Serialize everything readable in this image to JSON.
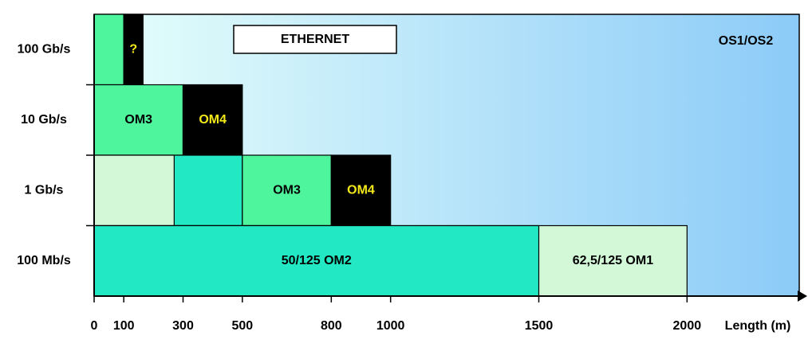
{
  "chart_data": {
    "type": "range",
    "title": "ETHERNET",
    "annotation": "OS1/OS2",
    "x_label": "Length (m)",
    "categories": [
      "100 Gb/s",
      "10 Gb/s",
      "1 Gb/s",
      "100 Mb/s"
    ],
    "xlim": [
      0,
      2400
    ],
    "xticks": [
      0,
      100,
      300,
      500,
      800,
      1000,
      1500,
      2000
    ],
    "ranges": [
      [
        {
          "start": 0,
          "end": 100,
          "color": "#4ff59c"
        },
        {
          "start": 100,
          "end": 165,
          "color": "#000000",
          "label": "?",
          "text_color": "#f3e81a"
        }
      ],
      [
        {
          "start": 0,
          "end": 300,
          "color": "#4ff59c",
          "label": "OM3",
          "text_color": "#000000"
        },
        {
          "start": 300,
          "end": 500,
          "color": "#000000",
          "label": "OM4",
          "text_color": "#f3e81a"
        }
      ],
      [
        {
          "start": 0,
          "end": 500,
          "color": "#22e8c4"
        },
        {
          "start": 0,
          "end": 270,
          "color": "#d2f8d8"
        },
        {
          "start": 500,
          "end": 800,
          "color": "#4ff59c",
          "label": "OM3",
          "text_color": "#000000"
        },
        {
          "start": 800,
          "end": 1000,
          "color": "#000000",
          "label": "OM4",
          "text_color": "#f3e81a"
        }
      ],
      [
        {
          "start": 0,
          "end": 2000,
          "color": "#d2f8d8",
          "label": "62,5/125 OM1",
          "text_color": "#000000"
        },
        {
          "start": 0,
          "end": 1500,
          "color": "#22e8c4",
          "label": "50/125 OM2",
          "text_color": "#000000"
        }
      ]
    ]
  }
}
